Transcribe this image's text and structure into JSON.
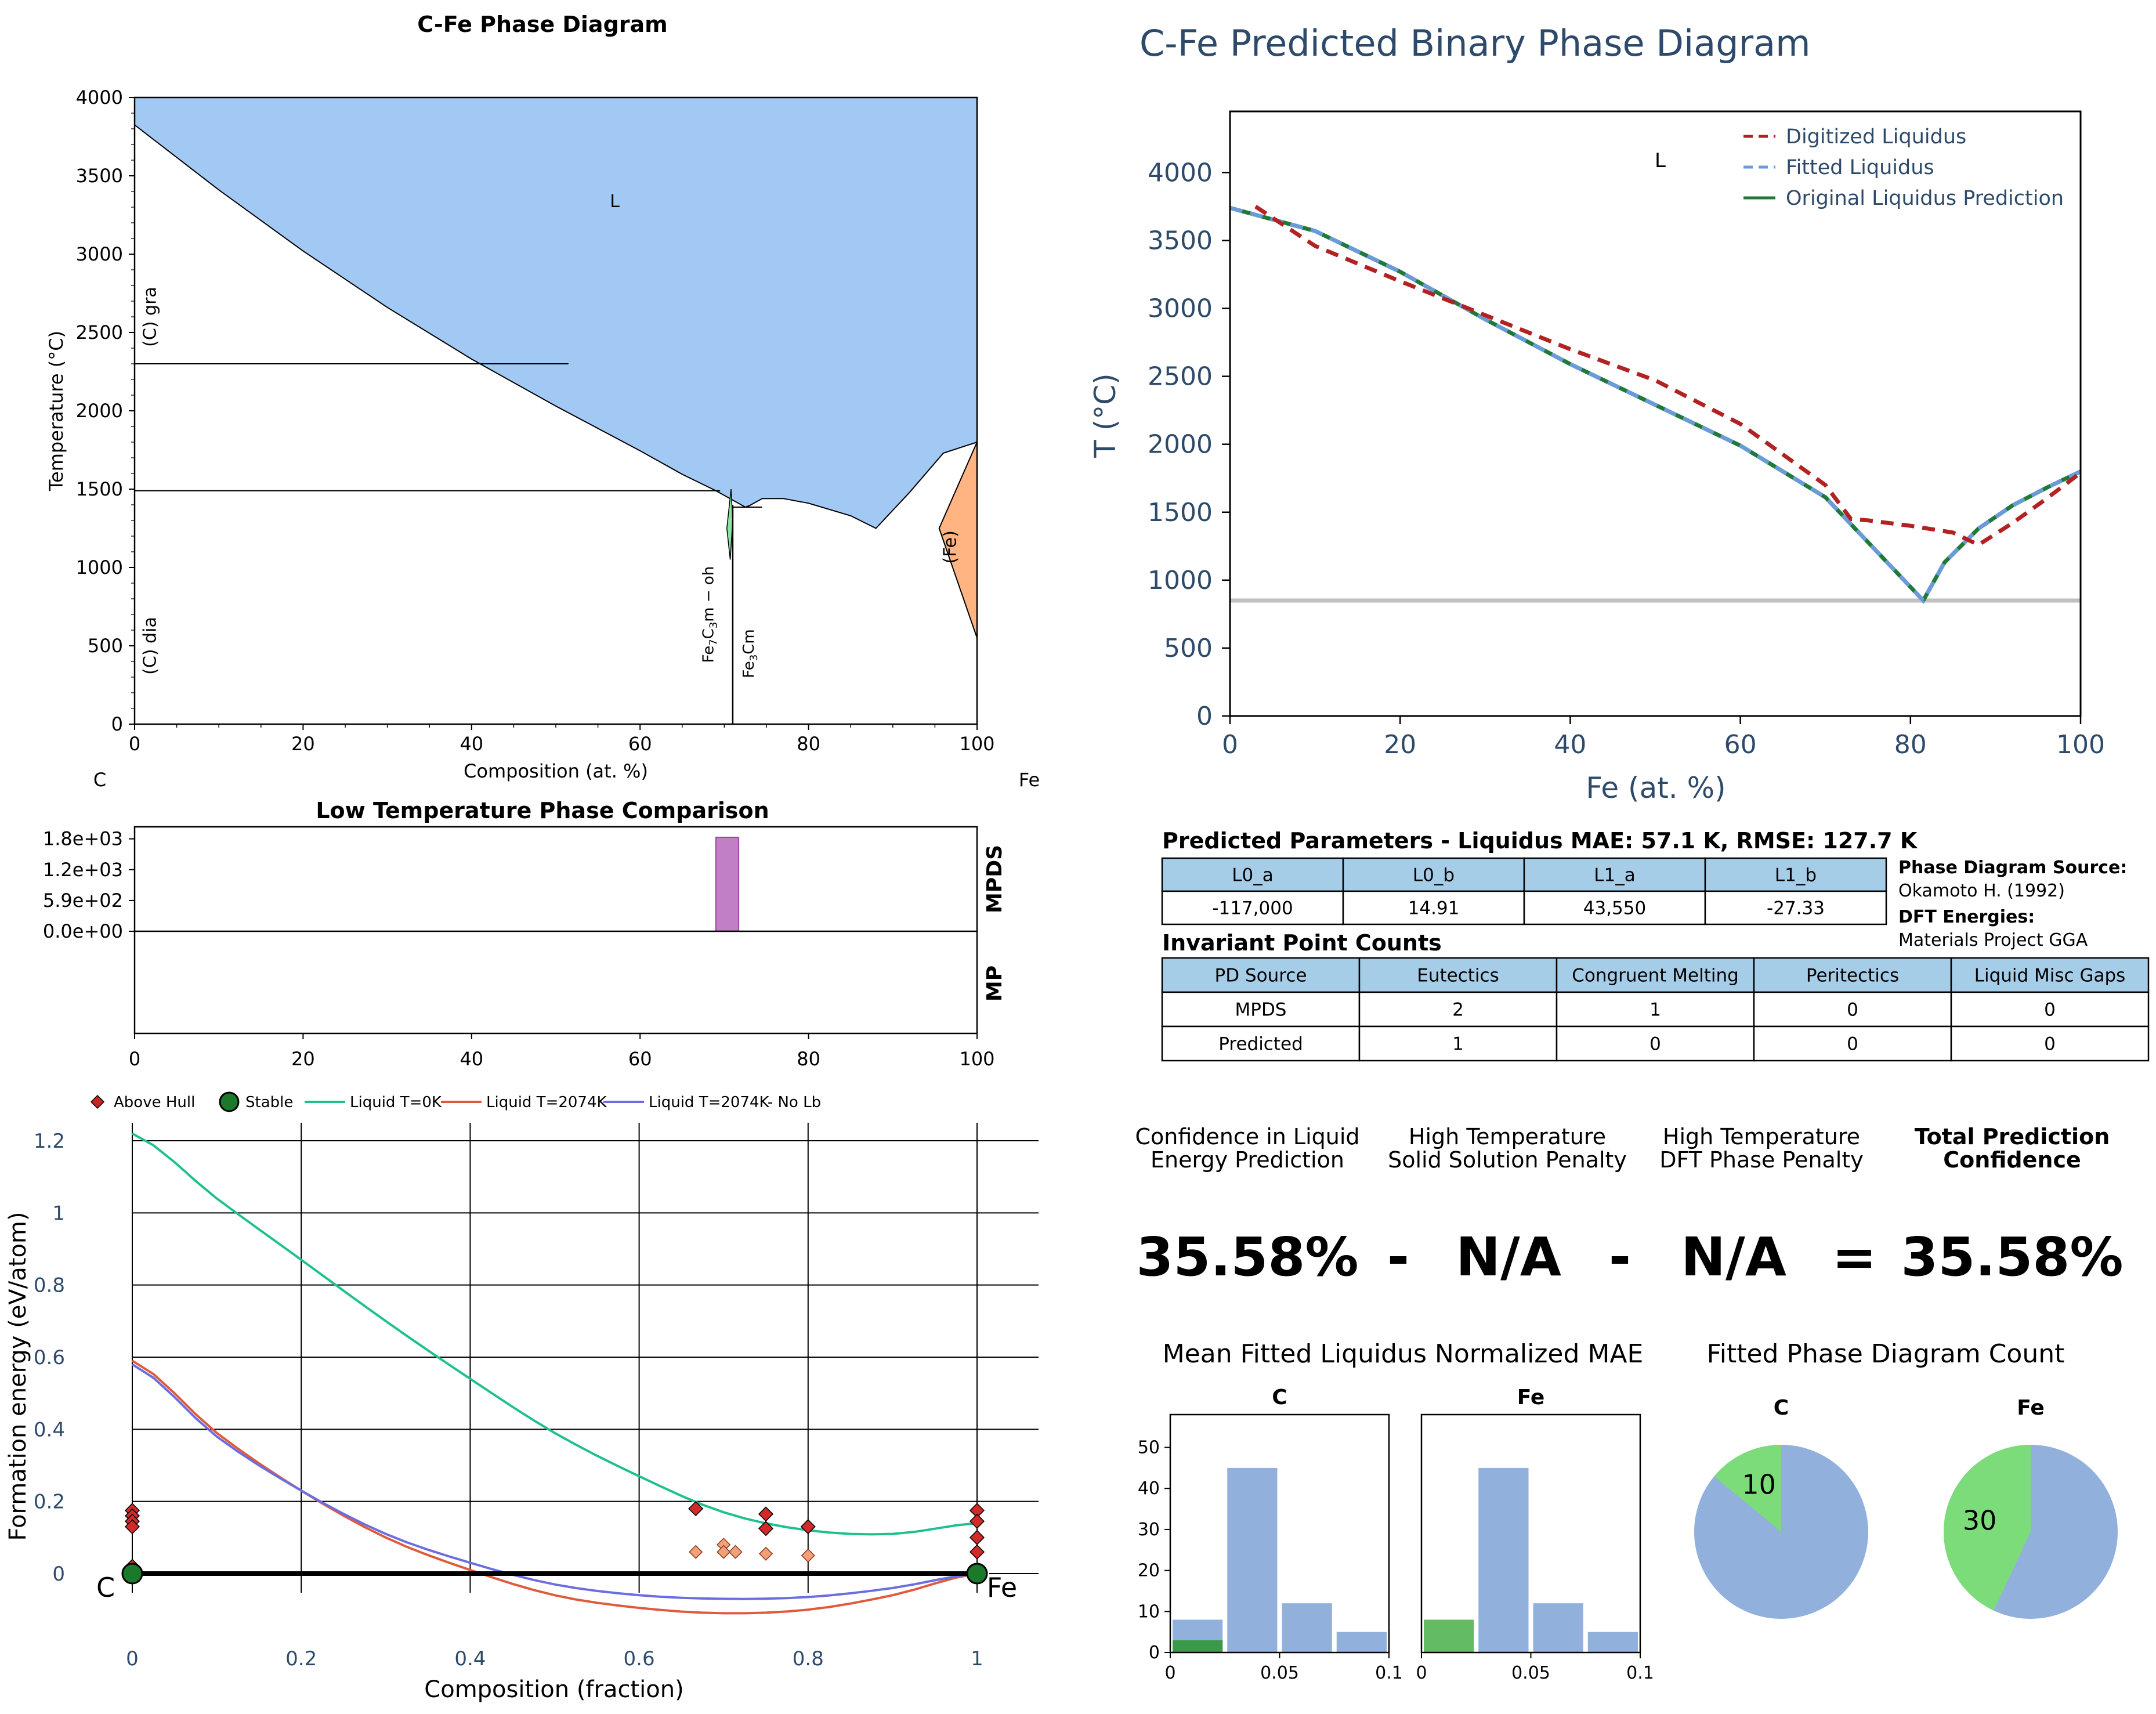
{
  "chart_data": [
    {
      "id": "cfe_phase_diagram",
      "type": "area",
      "title": "C-Fe Phase Diagram",
      "xlabel": "Composition (at. %)",
      "ylabel": "Temperature (°C)",
      "xlim": [
        0,
        100
      ],
      "ylim": [
        0,
        4000
      ],
      "xticks": [
        "0",
        "20",
        "40",
        "60",
        "80",
        "100"
      ],
      "yticks": [
        "0",
        "500",
        "1000",
        "1500",
        "2000",
        "2500",
        "3000",
        "3500",
        "4000"
      ],
      "left_element": "C",
      "right_element": "Fe",
      "colors": {
        "liquid": "#a1c9f4",
        "fe_phase": "#ffb482",
        "fe7c3": "#8de5a1"
      },
      "liquid_boundary": [
        [
          0,
          3825
        ],
        [
          10,
          3410
        ],
        [
          20,
          3020
        ],
        [
          30,
          2660
        ],
        [
          40,
          2330
        ],
        [
          50,
          2030
        ],
        [
          60,
          1745
        ],
        [
          65,
          1595
        ],
        [
          69,
          1490
        ],
        [
          71,
          1430
        ],
        [
          72.5,
          1385
        ],
        [
          73,
          1395
        ],
        [
          74.5,
          1440
        ],
        [
          77,
          1440
        ],
        [
          80,
          1410
        ],
        [
          85,
          1330
        ],
        [
          88,
          1250
        ],
        [
          92,
          1480
        ],
        [
          96,
          1730
        ],
        [
          100,
          1800
        ]
      ],
      "fe_phase_region": [
        [
          100,
          1800
        ],
        [
          95.5,
          1250
        ],
        [
          100,
          550
        ]
      ],
      "fe7c3_region": [
        [
          70.8,
          1500
        ],
        [
          70.3,
          1250
        ],
        [
          70.7,
          1050
        ],
        [
          71.0,
          1300
        ]
      ],
      "horizontal_lines": [
        2300,
        1490,
        1385
      ],
      "fe3c_line_x": 71,
      "labels": [
        {
          "text": "L",
          "x": 57,
          "y": 3300
        },
        {
          "text": "(C) gra",
          "x": 2.5,
          "y": 2600
        },
        {
          "text": "(C) dia",
          "x": 2.5,
          "y": 500
        },
        {
          "text": "(Fe)",
          "x": 97.5,
          "y": 1130
        }
      ],
      "compound_labels": [
        {
          "sym": "Fe",
          "sub": "7",
          "sym2": "C",
          "sub2": "3",
          "suffix": "m − oh",
          "x": 68.7,
          "y": 700
        },
        {
          "sym": "Fe",
          "sub": "3",
          "sym2": "Cm",
          "sub2": "",
          "suffix": "",
          "x": 73.5,
          "y": 450
        }
      ]
    },
    {
      "id": "predicted_binary_phase_diagram",
      "type": "line",
      "title": "C-Fe Predicted Binary Phase Diagram",
      "xlabel": "Fe (at. %)",
      "ylabel": "T (°C)",
      "xlim": [
        0,
        100
      ],
      "ylim": [
        0,
        4450
      ],
      "xticks": [
        "0",
        "20",
        "40",
        "60",
        "80",
        "100"
      ],
      "yticks": [
        "0",
        "500",
        "1000",
        "1500",
        "2000",
        "2500",
        "3000",
        "3500",
        "4000"
      ],
      "legend": "top-right",
      "annotation": "L",
      "eutectic_line_y": 850,
      "series": [
        {
          "name": "Digitized Liquidus",
          "color": "#b22222",
          "dash": true,
          "x": [
            3,
            10,
            20,
            30,
            40,
            50,
            60,
            70,
            73,
            75,
            80,
            85,
            88,
            92,
            96,
            100
          ],
          "y": [
            3750,
            3460,
            3200,
            2950,
            2700,
            2470,
            2150,
            1700,
            1450,
            1440,
            1400,
            1350,
            1260,
            1420,
            1600,
            1790
          ]
        },
        {
          "name": "Fitted Liquidus",
          "color": "#6a9bd8",
          "dash": true,
          "x": [
            0,
            10,
            20,
            30,
            40,
            50,
            60,
            70,
            75,
            80,
            81.5,
            84,
            88,
            92,
            96,
            100
          ],
          "y": [
            3740,
            3570,
            3270,
            2920,
            2590,
            2290,
            1990,
            1610,
            1280,
            950,
            850,
            1130,
            1380,
            1550,
            1680,
            1800
          ]
        },
        {
          "name": "Original Liquidus Prediction",
          "color": "#1f7a3a",
          "dash": false,
          "x": [
            0,
            10,
            20,
            30,
            40,
            50,
            60,
            70,
            75,
            80,
            81.5,
            84,
            88,
            92,
            96,
            100
          ],
          "y": [
            3740,
            3570,
            3270,
            2920,
            2590,
            2290,
            1990,
            1610,
            1280,
            950,
            850,
            1130,
            1380,
            1550,
            1680,
            1800
          ]
        }
      ]
    },
    {
      "id": "low_temperature_phase_comparison",
      "type": "bar",
      "title": "Low Temperature Phase Comparison",
      "xlim": [
        0,
        100
      ],
      "xticks": [
        "0",
        "20",
        "40",
        "60",
        "80",
        "100"
      ],
      "yticks": [
        "0.0e+00",
        "5.9e+02",
        "1.2e+03",
        "1.8e+03"
      ],
      "ylim": [
        0,
        2000
      ],
      "rows": [
        "MPDS",
        "MP"
      ],
      "bars": [
        {
          "row": "MPDS",
          "x0": 69,
          "x1": 71.7,
          "value": 1800,
          "color": "#c17fc6"
        }
      ]
    },
    {
      "id": "formation_energy",
      "type": "scatter",
      "xlabel": "Composition (fraction)",
      "ylabel": "Formation energy (eV/atom)",
      "xlim": [
        -0.02,
        1.02
      ],
      "ylim": [
        -0.11,
        1.25
      ],
      "xticks": [
        "0",
        "0.2",
        "0.4",
        "0.6",
        "0.8",
        "1"
      ],
      "yticks": [
        "0",
        "0.2",
        "0.4",
        "0.6",
        "0.8",
        "1",
        "1.2"
      ],
      "left_element": "C",
      "right_element": "Fe",
      "legend": [
        "Above Hull",
        "Stable",
        "Liquid T=0K",
        "Liquid T=2074K",
        "Liquid T=2074K- No Lb"
      ],
      "above_hull": [
        [
          0,
          0.175
        ],
        [
          0,
          0.16
        ],
        [
          0,
          0.145
        ],
        [
          0,
          0.13
        ],
        [
          0,
          0.02
        ],
        [
          0.667,
          0.18
        ],
        [
          0.75,
          0.165
        ],
        [
          0.75,
          0.125
        ],
        [
          0.8,
          0.13
        ],
        [
          1,
          0.175
        ],
        [
          1,
          0.145
        ],
        [
          1,
          0.1
        ],
        [
          1,
          0.06
        ]
      ],
      "above_hull_light": [
        [
          0.667,
          0.06
        ],
        [
          0.7,
          0.08
        ],
        [
          0.7,
          0.06
        ],
        [
          0.714,
          0.06
        ],
        [
          0.75,
          0.055
        ],
        [
          0.8,
          0.05
        ],
        [
          0,
          0.01
        ]
      ],
      "stable": [
        [
          0,
          0
        ],
        [
          1,
          0
        ]
      ],
      "series": [
        {
          "name": "Liquid T=0K",
          "color": "#1fbf8f",
          "x": [
            0,
            0.1,
            0.2,
            0.3,
            0.4,
            0.5,
            0.6,
            0.7,
            0.8,
            0.9,
            1
          ],
          "y": [
            1.22,
            1.04,
            0.87,
            0.7,
            0.54,
            0.39,
            0.27,
            0.17,
            0.12,
            0.11,
            0.14
          ]
        },
        {
          "name": "Liquid T=2074K",
          "color": "#e05a3a",
          "x": [
            0,
            0.1,
            0.2,
            0.3,
            0.4,
            0.5,
            0.6,
            0.7,
            0.8,
            0.9,
            1
          ],
          "y": [
            0.59,
            0.39,
            0.23,
            0.1,
            0.01,
            -0.06,
            -0.095,
            -0.11,
            -0.1,
            -0.06,
            0
          ]
        },
        {
          "name": "Liquid T=2074K- No Lb",
          "color": "#6a6ee0",
          "x": [
            0,
            0.1,
            0.2,
            0.3,
            0.4,
            0.5,
            0.6,
            0.7,
            0.8,
            0.9,
            1
          ],
          "y": [
            0.58,
            0.38,
            0.23,
            0.11,
            0.03,
            -0.03,
            -0.06,
            -0.07,
            -0.065,
            -0.04,
            0
          ]
        }
      ]
    },
    {
      "id": "mean_fitted_liquidus_mae",
      "type": "bar",
      "title": "Mean Fitted Liquidus Normalized MAE",
      "panels": [
        {
          "label": "C",
          "bins": [
            0,
            0.025,
            0.05,
            0.075,
            0.1
          ],
          "values": [
            8,
            45,
            12,
            5
          ],
          "highlight": [
            3,
            0,
            0,
            0
          ]
        },
        {
          "label": "Fe",
          "bins": [
            0,
            0.025,
            0.05,
            0.075,
            0.1
          ],
          "values": [
            8,
            45,
            12,
            5
          ],
          "highlight": [
            8,
            0,
            0,
            0
          ]
        }
      ],
      "yticks": [
        "0",
        "10",
        "20",
        "30",
        "40",
        "50"
      ],
      "xticks": [
        "0",
        "0.05",
        "0.1"
      ],
      "ylim": [
        0,
        58
      ],
      "colors": {
        "bar": "#92b0dc",
        "highlight_c": "#3a9a4a",
        "highlight_fe": "#63bb63"
      }
    },
    {
      "id": "fitted_phase_diagram_count",
      "type": "pie",
      "title": "Fitted Phase Diagram Count",
      "panels": [
        {
          "label": "C",
          "highlight_value": "10",
          "highlight_fraction": 0.14
        },
        {
          "label": "Fe",
          "highlight_value": "30",
          "highlight_fraction": 0.43
        }
      ],
      "colors": {
        "base": "#92b0dc",
        "highlight": "#7ddc7a"
      }
    }
  ],
  "parameters": {
    "title": "Predicted Parameters - Liquidus MAE: 57.1 K, RMSE: 127.7 K",
    "headers": [
      "L0_a",
      "L0_b",
      "L1_a",
      "L1_b"
    ],
    "values": [
      "-117,000",
      "14.91",
      "43,550",
      "-27.33"
    ],
    "source_label": "Phase Diagram Source:",
    "source_value": "Okamoto H. (1992)",
    "dft_label": "DFT Energies:",
    "dft_value": "Materials Project GGA"
  },
  "invariants": {
    "title": "Invariant Point Counts",
    "headers": [
      "PD Source",
      "Eutectics",
      "Congruent Melting",
      "Peritectics",
      "Liquid Misc Gaps"
    ],
    "rows": [
      [
        "MPDS",
        "2",
        "1",
        "0",
        "0"
      ],
      [
        "Predicted",
        "1",
        "0",
        "0",
        "0"
      ]
    ]
  },
  "confidence": {
    "h1": [
      "Confidence in Liquid",
      "Energy Prediction"
    ],
    "h2": [
      "High Temperature",
      "Solid Solution Penalty"
    ],
    "h3": [
      "High Temperature",
      "DFT Phase Penalty"
    ],
    "h4": [
      "Total Prediction",
      "Confidence"
    ],
    "v1": "35.58%",
    "op1": "-",
    "v2": "N/A",
    "op2": "-",
    "v3": "N/A",
    "op3": "=",
    "v4": "35.58%"
  }
}
